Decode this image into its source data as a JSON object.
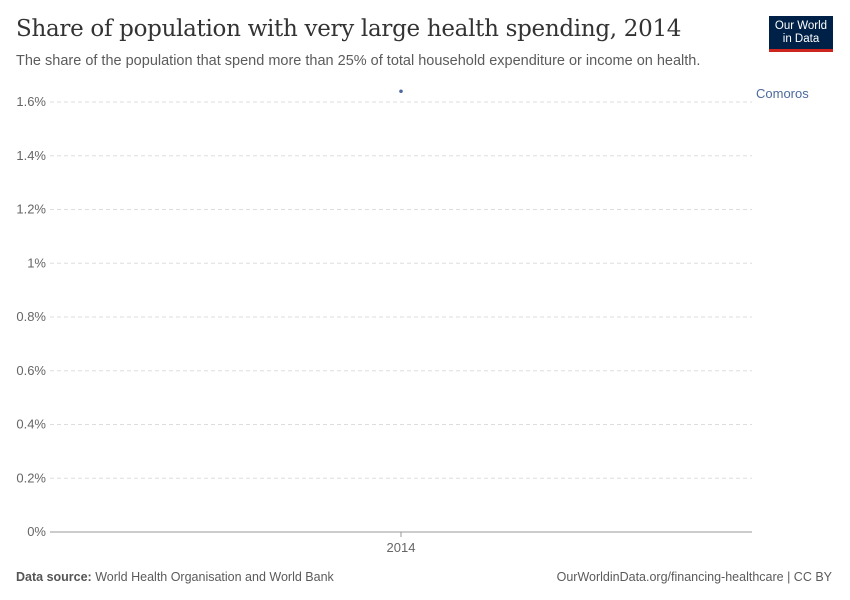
{
  "header": {
    "title": "Share of population with very large health spending, 2014",
    "subtitle": "The share of the population that spend more than 25% of total household expenditure or income on health.",
    "logo": "Our World in Data"
  },
  "chart_data": {
    "type": "scatter",
    "title": "Share of population with very large health spending, 2014",
    "x": [
      2014
    ],
    "series": [
      {
        "name": "Comoros",
        "values": [
          1.64
        ],
        "color": "#4c6a9c"
      }
    ],
    "xticks": [
      "2014"
    ],
    "yticks": [
      {
        "v": 0,
        "label": "0%"
      },
      {
        "v": 0.2,
        "label": "0.2%"
      },
      {
        "v": 0.4,
        "label": "0.4%"
      },
      {
        "v": 0.6,
        "label": "0.6%"
      },
      {
        "v": 0.8,
        "label": "0.8%"
      },
      {
        "v": 1,
        "label": "1%"
      },
      {
        "v": 1.2,
        "label": "1.2%"
      },
      {
        "v": 1.4,
        "label": "1.4%"
      },
      {
        "v": 1.6,
        "label": "1.6%"
      }
    ],
    "ylim": [
      0,
      1.6
    ],
    "grid": true
  },
  "footer": {
    "source_label": "Data source:",
    "source": "World Health Organisation and World Bank",
    "url": "OurWorldinData.org/financing-healthcare | CC BY"
  }
}
